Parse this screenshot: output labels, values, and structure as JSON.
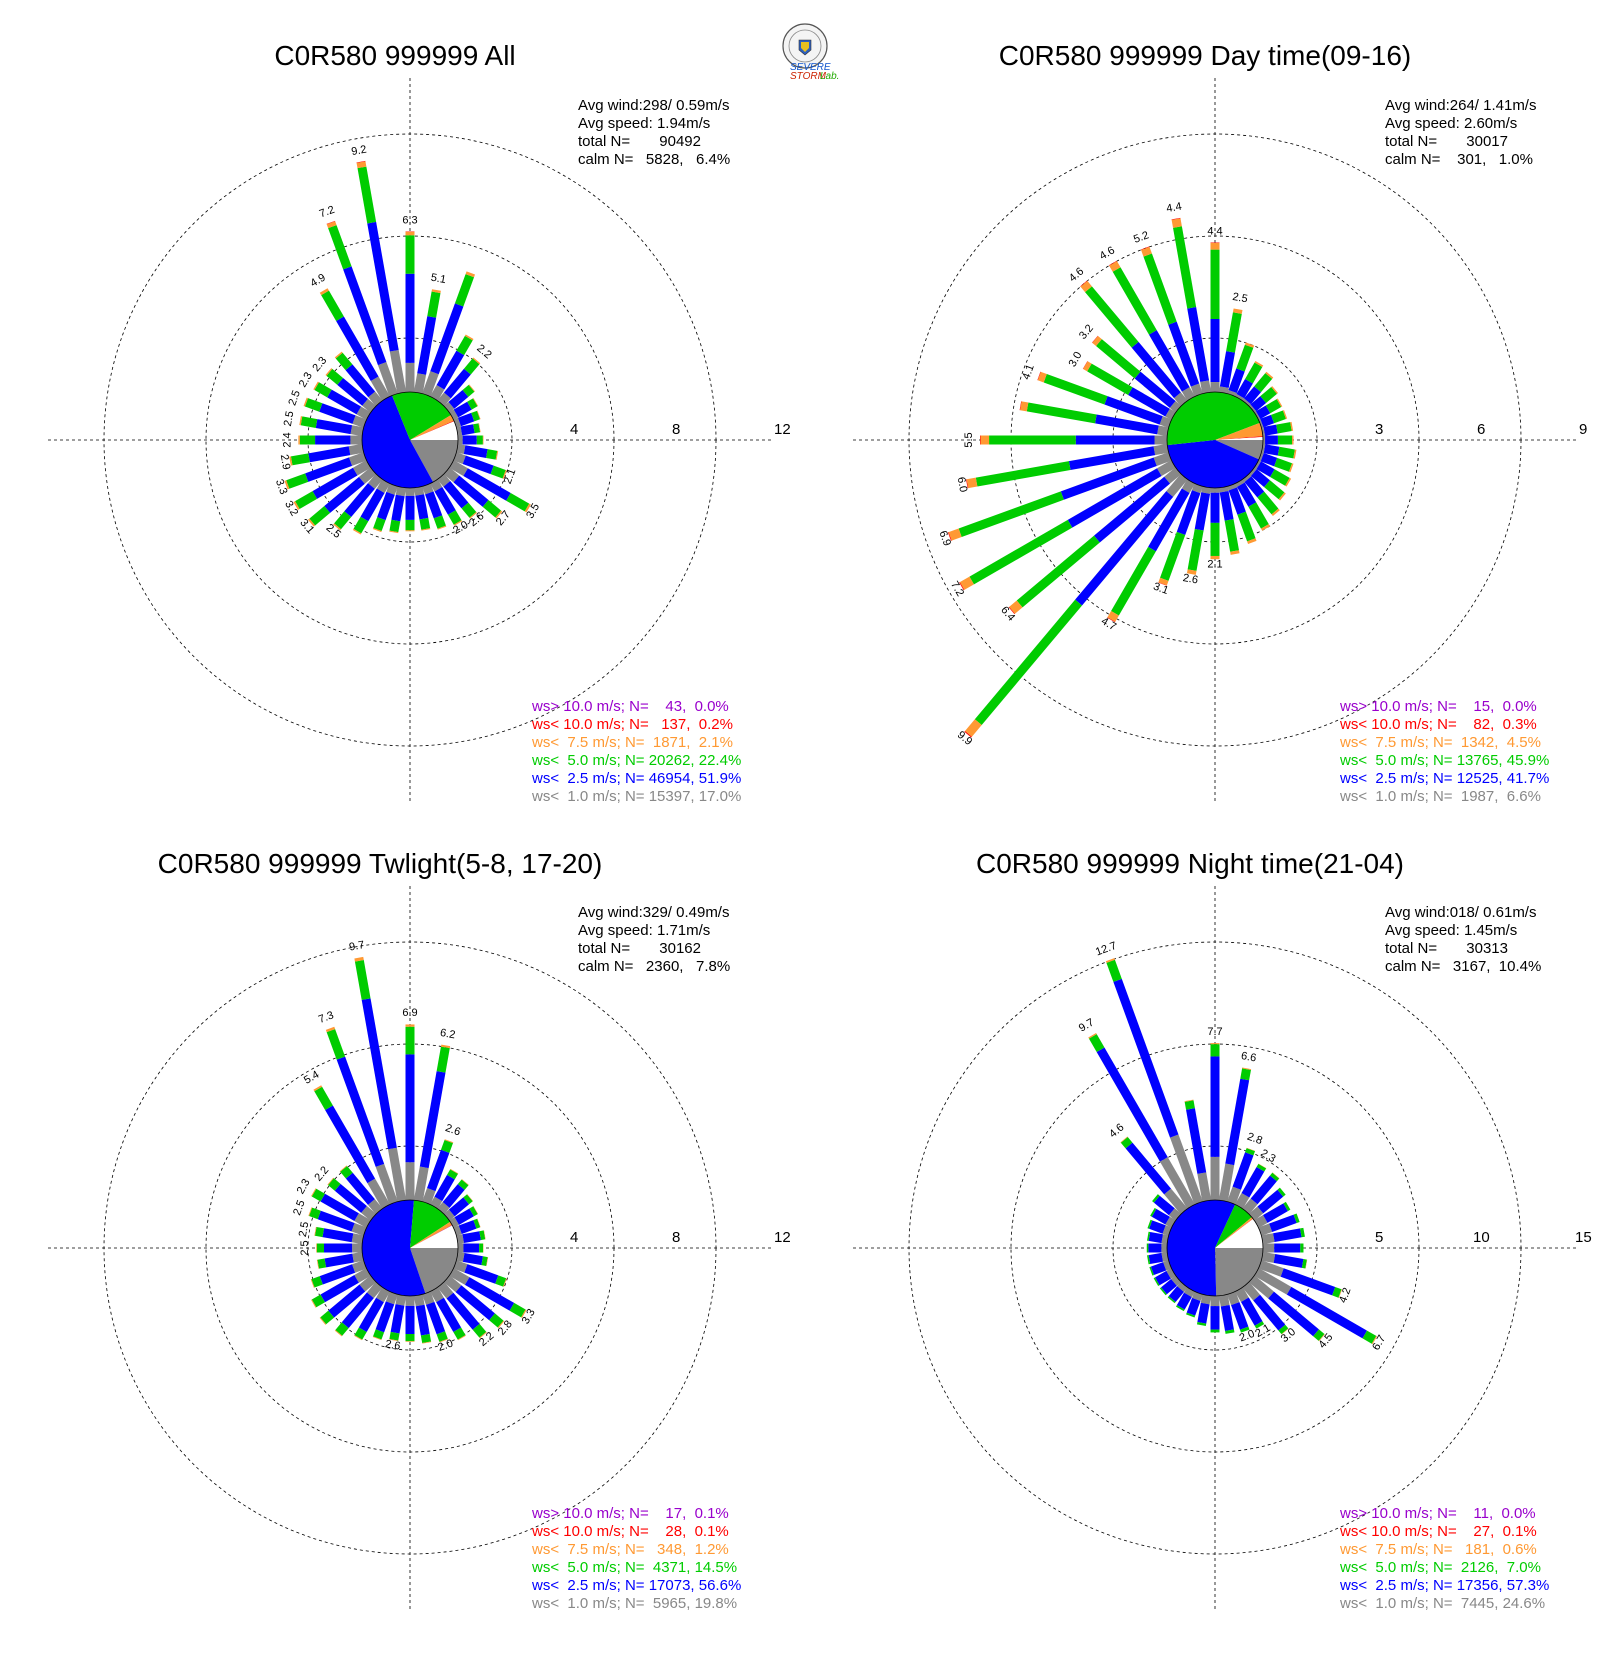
{
  "logo": {
    "text_severe": "SEVERE",
    "text_storm": "STORM",
    "text_lab": "Lab."
  },
  "colors": {
    "gt10": "#9900cc",
    "lt10": "#ff0000",
    "lt75": "#ff9933",
    "lt50": "#00cc00",
    "lt25": "#0000ff",
    "lt10ms": "#888888",
    "calm": "#ffffff"
  },
  "chart_data": [
    {
      "type": "windrose",
      "title": "C0R580 999999 All",
      "ring_ticks": [
        "4",
        "8",
        "12"
      ],
      "rmax": 16,
      "info": {
        "line1": "Avg wind:298/ 0.59m/s",
        "line2": "Avg speed: 1.94m/s",
        "line3": "total N=       90492",
        "line4": "calm N=   5828,   6.4%"
      },
      "pie": [
        17.0,
        51.9,
        22.4,
        2.1,
        0.2,
        0.0,
        6.4
      ],
      "totals": [
        9.2,
        7.2,
        6.3,
        5.1,
        4.9,
        3.5,
        3.3,
        3.2,
        3.1,
        2.9,
        2.7,
        2.6,
        2.5,
        2.5,
        2.5,
        2.4,
        2.3,
        2.3,
        2.2,
        2.1,
        2.0
      ],
      "legend": [
        {
          "text": "ws> 10.0 m/s; N=    43,  0.0%",
          "key": "gt10"
        },
        {
          "text": "ws< 10.0 m/s; N=   137,  0.2%",
          "key": "lt10"
        },
        {
          "text": "ws<  7.5 m/s; N=  1871,  2.1%",
          "key": "lt75"
        },
        {
          "text": "ws<  5.0 m/s; N= 20262, 22.4%",
          "key": "lt50"
        },
        {
          "text": "ws<  2.5 m/s; N= 46954, 51.9%",
          "key": "lt25"
        },
        {
          "text": "ws<  1.0 m/s; N= 15397, 17.0%",
          "key": "lt10ms"
        }
      ]
    },
    {
      "type": "windrose",
      "title": "C0R580 999999 Day time(09-16)",
      "ring_ticks": [
        "3",
        "6",
        "9"
      ],
      "rmax": 12,
      "info": {
        "line1": "Avg wind:264/ 1.41m/s",
        "line2": "Avg speed: 2.60m/s",
        "line3": "total N=       30017",
        "line4": "calm N=    301,   1.0%"
      },
      "pie": [
        6.6,
        41.7,
        45.9,
        4.5,
        0.3,
        0.0,
        1.0
      ],
      "totals": [
        9.9,
        7.2,
        6.9,
        6.4,
        6.0,
        5.5,
        5.2,
        4.7,
        4.6,
        4.6,
        4.4,
        4.4,
        4.1,
        3.2,
        3.1,
        3.0,
        2.6,
        2.5,
        2.1
      ],
      "legend": [
        {
          "text": "ws> 10.0 m/s; N=    15,  0.0%",
          "key": "gt10"
        },
        {
          "text": "ws< 10.0 m/s; N=    82,  0.3%",
          "key": "lt10"
        },
        {
          "text": "ws<  7.5 m/s; N=  1342,  4.5%",
          "key": "lt75"
        },
        {
          "text": "ws<  5.0 m/s; N= 13765, 45.9%",
          "key": "lt50"
        },
        {
          "text": "ws<  2.5 m/s; N= 12525, 41.7%",
          "key": "lt25"
        },
        {
          "text": "ws<  1.0 m/s; N=  1987,  6.6%",
          "key": "lt10ms"
        }
      ]
    },
    {
      "type": "windrose",
      "title": "C0R580 999999 Twlight(5-8, 17-20)",
      "ring_ticks": [
        "4",
        "8",
        "12"
      ],
      "rmax": 16,
      "info": {
        "line1": "Avg wind:329/ 0.49m/s",
        "line2": "Avg speed: 1.71m/s",
        "line3": "total N=       30162",
        "line4": "calm N=   2360,   7.8%"
      },
      "pie": [
        19.8,
        56.6,
        14.5,
        1.2,
        0.1,
        0.1,
        7.8
      ],
      "totals": [
        9.7,
        7.3,
        6.9,
        6.2,
        5.4,
        3.3,
        2.8,
        2.6,
        2.6,
        2.5,
        2.5,
        2.5,
        2.3,
        2.2,
        2.2,
        2.0
      ],
      "legend": [
        {
          "text": "ws> 10.0 m/s; N=    17,  0.1%",
          "key": "gt10"
        },
        {
          "text": "ws< 10.0 m/s; N=    28,  0.1%",
          "key": "lt10"
        },
        {
          "text": "ws<  7.5 m/s; N=   348,  1.2%",
          "key": "lt75"
        },
        {
          "text": "ws<  5.0 m/s; N=  4371, 14.5%",
          "key": "lt50"
        },
        {
          "text": "ws<  2.5 m/s; N= 17073, 56.6%",
          "key": "lt25"
        },
        {
          "text": "ws<  1.0 m/s; N=  5965, 19.8%",
          "key": "lt10ms"
        }
      ]
    },
    {
      "type": "windrose",
      "title": "C0R580 999999 Night time(21-04)",
      "ring_ticks": [
        "5",
        "10",
        "15"
      ],
      "rmax": 20,
      "info": {
        "line1": "Avg wind:018/ 0.61m/s",
        "line2": "Avg speed: 1.45m/s",
        "line3": "total N=       30313",
        "line4": "calm N=   3167,  10.4%"
      },
      "pie": [
        24.6,
        57.3,
        7.0,
        0.6,
        0.1,
        0.0,
        10.4
      ],
      "totals": [
        12.7,
        9.7,
        7.7,
        6.7,
        6.6,
        4.6,
        4.5,
        4.2,
        3.0,
        2.8,
        2.3,
        2.1,
        2.0
      ],
      "legend": [
        {
          "text": "ws> 10.0 m/s; N=    11,  0.0%",
          "key": "gt10"
        },
        {
          "text": "ws< 10.0 m/s; N=    27,  0.1%",
          "key": "lt10"
        },
        {
          "text": "ws<  7.5 m/s; N=   181,  0.6%",
          "key": "lt75"
        },
        {
          "text": "ws<  5.0 m/s; N=  2126,  7.0%",
          "key": "lt50"
        },
        {
          "text": "ws<  2.5 m/s; N= 17356, 57.3%",
          "key": "lt25"
        },
        {
          "text": "ws<  1.0 m/s; N=  7445, 24.6%",
          "key": "lt10ms"
        }
      ]
    }
  ]
}
